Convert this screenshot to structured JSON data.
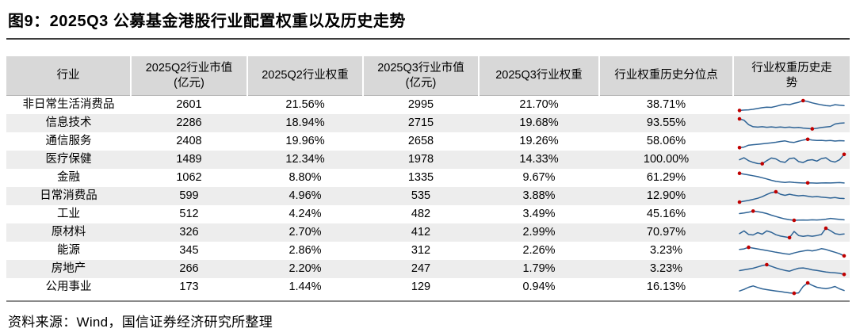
{
  "title": "图9：2025Q3 公募基金港股行业配置权重以及历史走势",
  "source": "资料来源：Wind，国信证券经济研究所整理",
  "colors": {
    "sparkline_line": "#2f6496",
    "sparkline_marker": "#c00000",
    "header_bg": "#d8d8d8",
    "row_stripe_bg": "#ededed"
  },
  "table": {
    "headers": [
      "行业",
      "2025Q2行业市值\n(亿元)",
      "2025Q2行业权重",
      "2025Q3行业市值\n(亿元)",
      "2025Q3行业权重",
      "行业权重历史分位点",
      "行业权重历史走\n势"
    ],
    "rows": [
      {
        "industry": "非日常生活消费品",
        "q2_market_value": "2601",
        "q2_weight": "21.56%",
        "q3_market_value": "2995",
        "q3_weight": "21.70%",
        "weight_percentile": "38.71%"
      },
      {
        "industry": "信息技术",
        "q2_market_value": "2286",
        "q2_weight": "18.94%",
        "q3_market_value": "2715",
        "q3_weight": "19.68%",
        "weight_percentile": "93.55%"
      },
      {
        "industry": "通信服务",
        "q2_market_value": "2408",
        "q2_weight": "19.96%",
        "q3_market_value": "2658",
        "q3_weight": "19.26%",
        "weight_percentile": "58.06%"
      },
      {
        "industry": "医疗保健",
        "q2_market_value": "1489",
        "q2_weight": "12.34%",
        "q3_market_value": "1978",
        "q3_weight": "14.33%",
        "weight_percentile": "100.00%"
      },
      {
        "industry": "金融",
        "q2_market_value": "1062",
        "q2_weight": "8.80%",
        "q3_market_value": "1335",
        "q3_weight": "9.67%",
        "weight_percentile": "61.29%"
      },
      {
        "industry": "日常消费品",
        "q2_market_value": "599",
        "q2_weight": "4.96%",
        "q3_market_value": "535",
        "q3_weight": "3.88%",
        "weight_percentile": "12.90%"
      },
      {
        "industry": "工业",
        "q2_market_value": "512",
        "q2_weight": "4.24%",
        "q3_market_value": "482",
        "q3_weight": "3.49%",
        "weight_percentile": "45.16%"
      },
      {
        "industry": "原材料",
        "q2_market_value": "326",
        "q2_weight": "2.70%",
        "q3_market_value": "412",
        "q3_weight": "2.99%",
        "weight_percentile": "70.97%"
      },
      {
        "industry": "能源",
        "q2_market_value": "345",
        "q2_weight": "2.86%",
        "q3_market_value": "312",
        "q3_weight": "2.26%",
        "weight_percentile": "3.23%"
      },
      {
        "industry": "房地产",
        "q2_market_value": "266",
        "q2_weight": "2.20%",
        "q3_market_value": "247",
        "q3_weight": "1.79%",
        "weight_percentile": "3.23%"
      },
      {
        "industry": "公用事业",
        "q2_market_value": "173",
        "q2_weight": "1.44%",
        "q3_market_value": "129",
        "q3_weight": "0.94%",
        "weight_percentile": "16.13%"
      }
    ]
  },
  "chart_data": {
    "type": "line",
    "description": "行业权重历史走势 sparklines, values normalized 0-100 of each row's own weight history; marker_indexes are the red-dot points",
    "series": [
      {
        "name": "非日常生活消费品",
        "values": [
          15,
          18,
          20,
          24,
          30,
          36,
          40,
          38,
          46,
          55,
          62,
          58,
          68,
          76,
          88,
          82,
          72,
          64,
          57,
          51,
          49,
          58,
          54,
          52
        ],
        "marker_indexes": [
          0,
          14
        ]
      },
      {
        "name": "信息技术",
        "values": [
          88,
          78,
          45,
          30,
          27,
          30,
          26,
          29,
          25,
          28,
          24,
          27,
          23,
          25,
          20,
          17,
          14,
          18,
          24,
          28,
          32,
          50,
          56,
          58
        ],
        "marker_indexes": [
          0,
          16
        ]
      },
      {
        "name": "通信服务",
        "values": [
          10,
          14,
          28,
          32,
          35,
          38,
          42,
          45,
          50,
          56,
          60,
          52,
          49,
          58,
          66,
          72,
          66,
          63,
          64,
          61,
          63,
          59,
          62,
          60
        ],
        "marker_indexes": [
          0,
          15
        ]
      },
      {
        "name": "医疗保健",
        "values": [
          55,
          70,
          48,
          36,
          27,
          26,
          48,
          68,
          62,
          42,
          36,
          64,
          68,
          42,
          35,
          52,
          56,
          45,
          64,
          70,
          46,
          38,
          55,
          95
        ],
        "marker_indexes": [
          5,
          23
        ]
      },
      {
        "name": "金融",
        "values": [
          90,
          84,
          78,
          72,
          65,
          57,
          48,
          38,
          30,
          26,
          22,
          26,
          22,
          20,
          18,
          19,
          18,
          17,
          18,
          19,
          18,
          20,
          21,
          18
        ],
        "marker_indexes": [
          0,
          15
        ]
      },
      {
        "name": "日常消费品",
        "values": [
          12,
          18,
          24,
          32,
          40,
          52,
          68,
          82,
          88,
          70,
          62,
          70,
          63,
          58,
          61,
          55,
          50,
          53,
          48,
          45,
          42,
          45,
          40,
          38
        ],
        "marker_indexes": [
          0,
          8
        ]
      },
      {
        "name": "工业",
        "values": [
          62,
          66,
          72,
          80,
          76,
          70,
          62,
          50,
          40,
          30,
          22,
          16,
          12,
          13,
          14,
          13,
          15,
          14,
          16,
          20,
          26,
          22,
          18,
          15
        ],
        "marker_indexes": [
          3,
          12
        ]
      },
      {
        "name": "原材料",
        "values": [
          48,
          68,
          42,
          38,
          55,
          44,
          68,
          58,
          40,
          30,
          24,
          18,
          64,
          34,
          28,
          33,
          29,
          34,
          42,
          88,
          70,
          48,
          42,
          46
        ],
        "marker_indexes": [
          11,
          19
        ]
      },
      {
        "name": "能源",
        "values": [
          66,
          70,
          82,
          76,
          70,
          64,
          58,
          52,
          45,
          40,
          34,
          30,
          40,
          48,
          54,
          60,
          55,
          62,
          72,
          66,
          55,
          45,
          34,
          18
        ],
        "marker_indexes": [
          2,
          23
        ]
      },
      {
        "name": "房地产",
        "values": [
          44,
          50,
          56,
          62,
          72,
          82,
          88,
          76,
          64,
          54,
          46,
          40,
          52,
          62,
          64,
          58,
          50,
          45,
          40,
          34,
          30,
          28,
          24,
          16
        ],
        "marker_indexes": [
          6,
          23
        ]
      },
      {
        "name": "公用事业",
        "values": [
          28,
          40,
          56,
          66,
          54,
          44,
          38,
          33,
          28,
          24,
          18,
          14,
          11,
          14,
          62,
          88,
          70,
          56,
          50,
          46,
          52,
          62,
          44,
          32
        ],
        "marker_indexes": [
          12,
          15
        ]
      }
    ]
  }
}
